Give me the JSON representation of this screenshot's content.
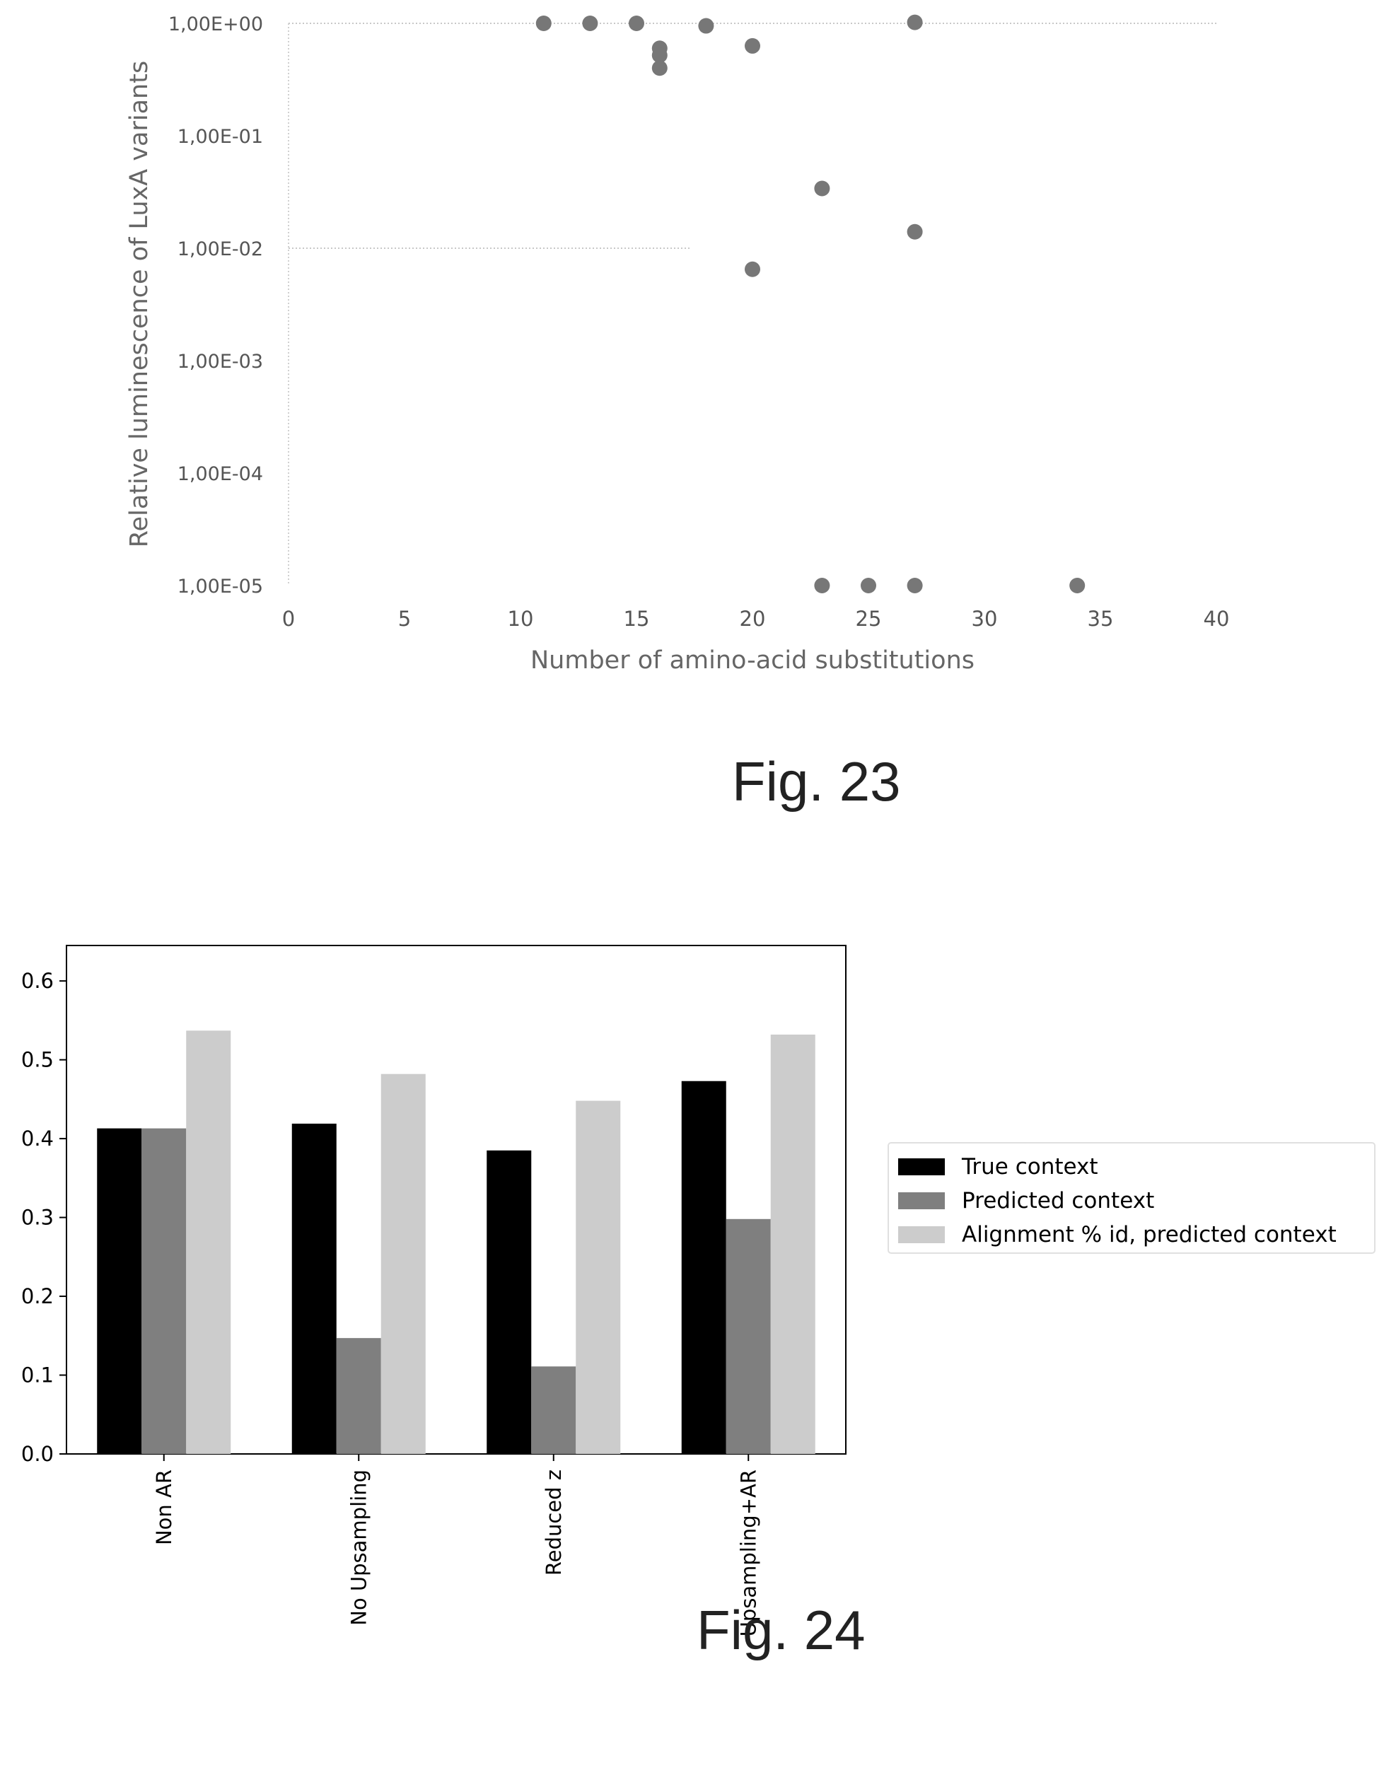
{
  "chart_data": [
    {
      "type": "scatter",
      "figure_label": "Fig. 23",
      "xlabel": "Number of amino-acid substitutions",
      "ylabel": "Relative luminescence of LuxA variants",
      "x_ticks": [
        "0",
        "5",
        "10",
        "15",
        "20",
        "25",
        "30",
        "35",
        "40"
      ],
      "x_tick_values": [
        0,
        5,
        10,
        15,
        20,
        25,
        30,
        35,
        40
      ],
      "y_ticks": [
        "1,00E+00",
        "1,00E-01",
        "1,00E-02",
        "1,00E-03",
        "1,00E-04",
        "1,00E-05"
      ],
      "y_tick_values": [
        1,
        0.1,
        0.01,
        0.001,
        0.0001,
        1e-05
      ],
      "y_scale": "log",
      "xlim": [
        0,
        40
      ],
      "ylim": [
        1e-05,
        1
      ],
      "grid": "partial horizontal",
      "marker_color": "#777777",
      "points": [
        {
          "x": 11,
          "y": 1.0
        },
        {
          "x": 13,
          "y": 1.0
        },
        {
          "x": 15,
          "y": 1.0
        },
        {
          "x": 16,
          "y": 0.6
        },
        {
          "x": 16,
          "y": 0.52
        },
        {
          "x": 16,
          "y": 0.4
        },
        {
          "x": 18,
          "y": 0.95
        },
        {
          "x": 20,
          "y": 0.63
        },
        {
          "x": 23,
          "y": 0.034
        },
        {
          "x": 27,
          "y": 1.02
        },
        {
          "x": 27,
          "y": 0.014
        },
        {
          "x": 20,
          "y": 0.0065
        },
        {
          "x": 23,
          "y": 1e-05
        },
        {
          "x": 25,
          "y": 1e-05
        },
        {
          "x": 27,
          "y": 1e-05
        },
        {
          "x": 34,
          "y": 1e-05
        }
      ]
    },
    {
      "type": "bar",
      "figure_label": "Fig. 24",
      "categories": [
        "Non AR",
        "No Upsampling",
        "Reduced z",
        "Upsampling+AR"
      ],
      "y_ticks": [
        "0.0",
        "0.1",
        "0.2",
        "0.3",
        "0.4",
        "0.5",
        "0.6"
      ],
      "y_tick_values": [
        0,
        0.1,
        0.2,
        0.3,
        0.4,
        0.5,
        0.6
      ],
      "ylim": [
        0,
        0.645
      ],
      "legend_position": "right",
      "series": [
        {
          "name": "True context",
          "color": "#000000",
          "values": [
            0.413,
            0.419,
            0.385,
            0.473
          ]
        },
        {
          "name": "Predicted context",
          "color": "#7f7f7f",
          "values": [
            0.413,
            0.147,
            0.111,
            0.298
          ]
        },
        {
          "name": "Alignment % id, predicted context",
          "color": "#cccccc",
          "values": [
            0.537,
            0.482,
            0.448,
            0.532
          ]
        }
      ]
    }
  ]
}
